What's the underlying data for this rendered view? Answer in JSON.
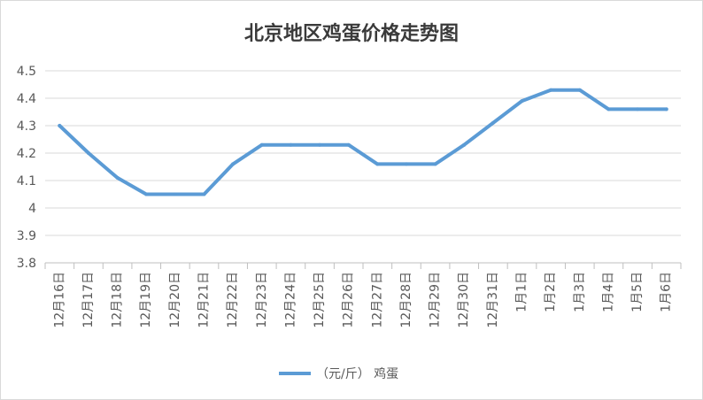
{
  "chart_data": {
    "type": "line",
    "title": "北京地区鸡蛋价格走势图",
    "xlabel": "",
    "ylabel": "",
    "categories": [
      "12月16日",
      "12月17日",
      "12月18日",
      "12月19日",
      "12月20日",
      "12月21日",
      "12月22日",
      "12月23日",
      "12月24日",
      "12月25日",
      "12月26日",
      "12月27日",
      "12月28日",
      "12月29日",
      "12月30日",
      "12月31日",
      "1月1日",
      "1月2日",
      "1月3日",
      "1月4日",
      "1月5日",
      "1月6日"
    ],
    "series": [
      {
        "name": "（元/斤） 鸡蛋",
        "values": [
          4.3,
          4.2,
          4.11,
          4.05,
          4.05,
          4.05,
          4.16,
          4.23,
          4.23,
          4.23,
          4.23,
          4.16,
          4.16,
          4.16,
          4.23,
          4.31,
          4.39,
          4.43,
          4.43,
          4.36,
          4.36,
          4.36
        ]
      }
    ],
    "ylim": [
      3.8,
      4.5
    ],
    "yticks": [
      "3.8",
      "3.9",
      "4",
      "4.1",
      "4.2",
      "4.3",
      "4.4",
      "4.5"
    ],
    "grid": true,
    "legend_position": "bottom-center",
    "colors": {
      "line": "#5b9bd5",
      "grid": "#d9d9d9",
      "axis": "#bfbfbf",
      "text": "#595959"
    }
  }
}
